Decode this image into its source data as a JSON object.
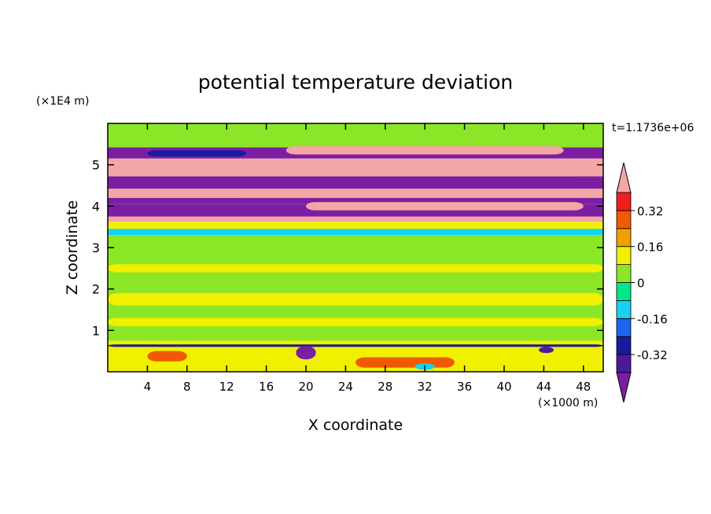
{
  "chart_data": {
    "type": "heatmap",
    "title": "potential temperature deviation",
    "xlabel": "X coordinate",
    "ylabel": "Z coordinate",
    "x_unit": "(×1000 m)",
    "y_unit": "(×1E4 m)",
    "time_label": "t=1.1736e+06",
    "xlim": [
      0,
      50
    ],
    "ylim": [
      0,
      6
    ],
    "x_ticks": [
      4,
      8,
      12,
      16,
      20,
      24,
      28,
      32,
      36,
      40,
      44,
      48
    ],
    "y_ticks": [
      1,
      2,
      3,
      4,
      5
    ],
    "colorbar": {
      "levels": [
        -0.4,
        -0.32,
        -0.24,
        -0.16,
        -0.08,
        0,
        0.08,
        0.16,
        0.24,
        0.32,
        0.4
      ],
      "tick_labels": [
        "0.32",
        "0.16",
        "0",
        "-0.16",
        "-0.32"
      ],
      "tick_values": [
        0.32,
        0.16,
        0,
        -0.16,
        -0.32
      ],
      "colors": [
        "#7b1fa2",
        "#4b1a9c",
        "#1a1a9c",
        "#1e64f0",
        "#14d2f0",
        "#00e68c",
        "#8ce628",
        "#f0f000",
        "#f0a000",
        "#f05a00",
        "#f01e1e",
        "#f4a6a6"
      ],
      "extend": "both"
    },
    "bands": [
      {
        "z": [
          5.62,
          6.0
        ],
        "value": 0.02
      },
      {
        "z": [
          5.42,
          5.62
        ],
        "value": 0.07
      },
      {
        "z": [
          5.15,
          5.42
        ],
        "value": -0.45
      },
      {
        "z": [
          5.02,
          5.15
        ],
        "value": 0.45
      },
      {
        "z": [
          4.72,
          5.02
        ],
        "value": 0.45
      },
      {
        "z": [
          4.42,
          4.72
        ],
        "value": -0.45
      },
      {
        "z": [
          4.2,
          4.42
        ],
        "value": 0.45
      },
      {
        "z": [
          4.05,
          4.2
        ],
        "value": -0.45
      },
      {
        "z": [
          3.75,
          4.05
        ],
        "value": -0.45
      },
      {
        "z": [
          3.62,
          3.75
        ],
        "value": 0.45
      },
      {
        "z": [
          3.45,
          3.62
        ],
        "value": 0.1
      },
      {
        "z": [
          3.3,
          3.45
        ],
        "value": -0.1
      },
      {
        "z": [
          0.75,
          3.3
        ],
        "value": 0.03
      },
      {
        "z": [
          0.0,
          0.75
        ],
        "value": 0.1
      }
    ],
    "features": [
      {
        "x": [
          0,
          48
        ],
        "z": [
          4.72,
          4.95
        ],
        "value": 0.45
      },
      {
        "x": [
          4,
          14
        ],
        "z": [
          5.2,
          5.35
        ],
        "value": -0.3
      },
      {
        "x": [
          18,
          46
        ],
        "z": [
          5.25,
          5.45
        ],
        "value": 0.45
      },
      {
        "x": [
          0,
          30
        ],
        "z": [
          4.78,
          4.9
        ],
        "value": 0.45
      },
      {
        "x": [
          26,
          50
        ],
        "z": [
          4.45,
          4.68
        ],
        "value": -0.45
      },
      {
        "x": [
          0,
          14
        ],
        "z": [
          4.2,
          4.35
        ],
        "value": 0.45
      },
      {
        "x": [
          20,
          48
        ],
        "z": [
          3.9,
          4.1
        ],
        "value": 0.45
      },
      {
        "x": [
          0,
          50
        ],
        "z": [
          0.6,
          0.66
        ],
        "value": -0.3
      },
      {
        "x": [
          19,
          21
        ],
        "z": [
          0.3,
          0.62
        ],
        "value": -0.42
      },
      {
        "x": [
          43.5,
          45
        ],
        "z": [
          0.45,
          0.6
        ],
        "value": -0.4
      },
      {
        "x": [
          4,
          8
        ],
        "z": [
          0.25,
          0.5
        ],
        "value": 0.3
      },
      {
        "x": [
          25,
          35
        ],
        "z": [
          0.1,
          0.35
        ],
        "value": 0.25
      },
      {
        "x": [
          31,
          33
        ],
        "z": [
          0.05,
          0.2
        ],
        "value": -0.12
      },
      {
        "x": [
          0,
          50
        ],
        "z": [
          1.6,
          1.9
        ],
        "value": 0.1
      },
      {
        "x": [
          0,
          50
        ],
        "z": [
          2.4,
          2.6
        ],
        "value": 0.09
      },
      {
        "x": [
          0,
          50
        ],
        "z": [
          1.1,
          1.3
        ],
        "value": 0.08
      }
    ]
  }
}
